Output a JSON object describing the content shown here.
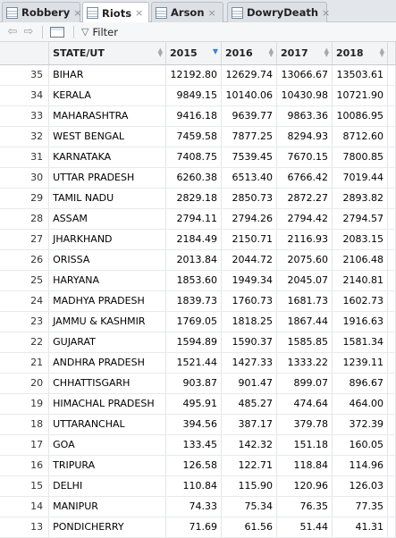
{
  "tabs": [
    {
      "label": "Robbery",
      "close": "×",
      "active": false
    },
    {
      "label": "Riots",
      "close": "×",
      "active": true
    },
    {
      "label": "Arson",
      "close": "×",
      "active": false
    },
    {
      "label": "DowryDeath",
      "close": "×",
      "active": false
    }
  ],
  "toolbar": {
    "back_glyph": "⇦",
    "forward_glyph": "⇨",
    "filter_label": "Filter",
    "funnel_glyph": "▽"
  },
  "table": {
    "columns": [
      "",
      "STATE/UT",
      "2015",
      "2016",
      "2017",
      "2018"
    ],
    "sorted_column": "2015",
    "sort_direction": "descending",
    "rows": [
      [
        "35",
        "BIHAR",
        "12192.80",
        "12629.74",
        "13066.67",
        "13503.61"
      ],
      [
        "34",
        "KERALA",
        "9849.15",
        "10140.06",
        "10430.98",
        "10721.90"
      ],
      [
        "33",
        "MAHARASHTRA",
        "9416.18",
        "9639.77",
        "9863.36",
        "10086.95"
      ],
      [
        "32",
        "WEST BENGAL",
        "7459.58",
        "7877.25",
        "8294.93",
        "8712.60"
      ],
      [
        "31",
        "KARNATAKA",
        "7408.75",
        "7539.45",
        "7670.15",
        "7800.85"
      ],
      [
        "30",
        "UTTAR PRADESH",
        "6260.38",
        "6513.40",
        "6766.42",
        "7019.44"
      ],
      [
        "29",
        "TAMIL NADU",
        "2829.18",
        "2850.73",
        "2872.27",
        "2893.82"
      ],
      [
        "28",
        "ASSAM",
        "2794.11",
        "2794.26",
        "2794.42",
        "2794.57"
      ],
      [
        "27",
        "JHARKHAND",
        "2184.49",
        "2150.71",
        "2116.93",
        "2083.15"
      ],
      [
        "26",
        "ORISSA",
        "2013.84",
        "2044.72",
        "2075.60",
        "2106.48"
      ],
      [
        "25",
        "HARYANA",
        "1853.60",
        "1949.34",
        "2045.07",
        "2140.81"
      ],
      [
        "24",
        "MADHYA PRADESH",
        "1839.73",
        "1760.73",
        "1681.73",
        "1602.73"
      ],
      [
        "23",
        "JAMMU & KASHMIR",
        "1769.05",
        "1818.25",
        "1867.44",
        "1916.63"
      ],
      [
        "22",
        "GUJARAT",
        "1594.89",
        "1590.37",
        "1585.85",
        "1581.34"
      ],
      [
        "21",
        "ANDHRA PRADESH",
        "1521.44",
        "1427.33",
        "1333.22",
        "1239.11"
      ],
      [
        "20",
        "CHHATTISGARH",
        "903.87",
        "901.47",
        "899.07",
        "896.67"
      ],
      [
        "19",
        "HIMACHAL PRADESH",
        "495.91",
        "485.27",
        "474.64",
        "464.00"
      ],
      [
        "18",
        "UTTARANCHAL",
        "394.56",
        "387.17",
        "379.78",
        "372.39"
      ],
      [
        "17",
        "GOA",
        "133.45",
        "142.32",
        "151.18",
        "160.05"
      ],
      [
        "16",
        "TRIPURA",
        "126.58",
        "122.71",
        "118.84",
        "114.96"
      ],
      [
        "15",
        "DELHI",
        "110.84",
        "115.90",
        "120.96",
        "126.03"
      ],
      [
        "14",
        "MANIPUR",
        "74.33",
        "75.34",
        "76.35",
        "77.35"
      ],
      [
        "13",
        "PONDICHERRY",
        "71.69",
        "61.56",
        "51.44",
        "41.31"
      ]
    ]
  }
}
